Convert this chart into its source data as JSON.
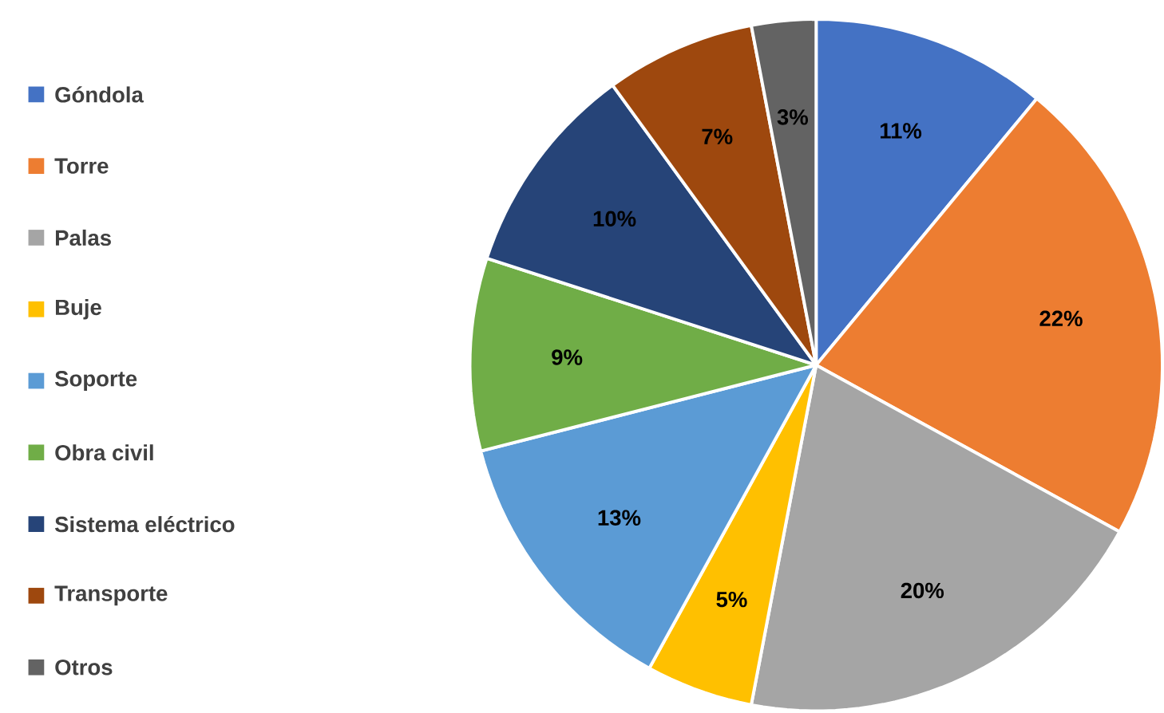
{
  "chart_data": {
    "type": "pie",
    "categories": [
      "Góndola",
      "Torre",
      "Palas",
      "Buje",
      "Soporte",
      "Obra civil",
      "Sistema eléctrico",
      "Transporte",
      "Otros"
    ],
    "values": [
      11,
      22,
      20,
      5,
      13,
      9,
      10,
      7,
      3
    ],
    "value_labels": [
      "11%",
      "22%",
      "20%",
      "5%",
      "13%",
      "9%",
      "10%",
      "7%",
      "3%"
    ],
    "colors": [
      "#4472c4",
      "#ed7d31",
      "#a5a5a5",
      "#ffc000",
      "#5b9bd5",
      "#70ad47",
      "#264478",
      "#9e480e",
      "#636363"
    ],
    "legend": "left"
  }
}
